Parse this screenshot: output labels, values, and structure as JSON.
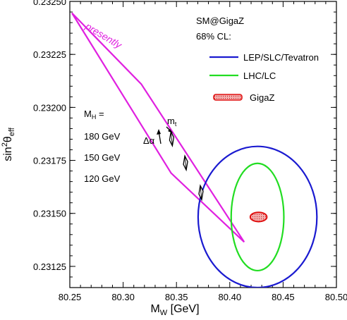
{
  "chart_data": {
    "type": "contour",
    "xlabel": {
      "main": "M",
      "sub": "W",
      "suffix": " [GeV]"
    },
    "ylabel": {
      "main": "sin",
      "sup": "2",
      "mid": "θ",
      "sub": "eff"
    },
    "xlim": [
      80.25,
      80.5
    ],
    "ylim": [
      0.23115,
      0.2325
    ],
    "xticks": [
      80.25,
      80.3,
      80.35,
      80.4,
      80.45,
      80.5
    ],
    "xtick_labels": [
      "80.25",
      "80.30",
      "80.35",
      "80.40",
      "80.45",
      "80.50"
    ],
    "yticks": [
      0.23125,
      0.2315,
      0.23175,
      0.232,
      0.23225,
      0.2325
    ],
    "ytick_labels": [
      "0.23125",
      "0.23150",
      "0.23175",
      "0.23200",
      "0.23225",
      "0.23250"
    ],
    "legend": {
      "header": "SM@GigaZ",
      "subheader": "68% CL:",
      "position": "top-right",
      "items": [
        {
          "label": "LEP/SLC/Tevatron",
          "color": "#1a1ad0",
          "style": "ellipse"
        },
        {
          "label": "LHC/LC",
          "color": "#22dd22",
          "style": "ellipse"
        },
        {
          "label": "GigaZ",
          "color": "#e01010",
          "style": "filled"
        }
      ]
    },
    "sm_band": {
      "label": "presently",
      "color": "#e020e0",
      "polygon": [
        [
          80.252,
          0.232445
        ],
        [
          80.317,
          0.23211
        ],
        [
          80.4135,
          0.231365
        ],
        [
          80.345,
          0.23169
        ],
        [
          80.252,
          0.232445
        ]
      ]
    },
    "ellipses": [
      {
        "name": "LEP/SLC/Tevatron",
        "cx": 80.426,
        "cy": 0.231483,
        "rx": 0.0557,
        "ry": 0.000333,
        "color": "#1a1ad0"
      },
      {
        "name": "LHC/LC",
        "cx": 80.426,
        "cy": 0.231483,
        "rx": 0.0247,
        "ry": 0.000253,
        "color": "#22dd22"
      },
      {
        "name": "GigaZ",
        "cx": 80.427,
        "cy": 0.231483,
        "rx": 0.0078,
        "ry": 2.2e-05,
        "color": "#e01010"
      }
    ],
    "mh_points": [
      {
        "label": "180 GeV",
        "x": 80.3455,
        "y": 0.231852
      },
      {
        "label": "150 GeV",
        "x": 80.3585,
        "y": 0.231738
      },
      {
        "label": "120 GeV",
        "x": 80.373,
        "y": 0.231598
      }
    ],
    "mh_header": {
      "main": "M",
      "sub": "H",
      "suffix": " ="
    },
    "arrows": [
      {
        "label": "m",
        "sub": "t"
      },
      {
        "label": "Δα"
      }
    ],
    "grid": false
  }
}
